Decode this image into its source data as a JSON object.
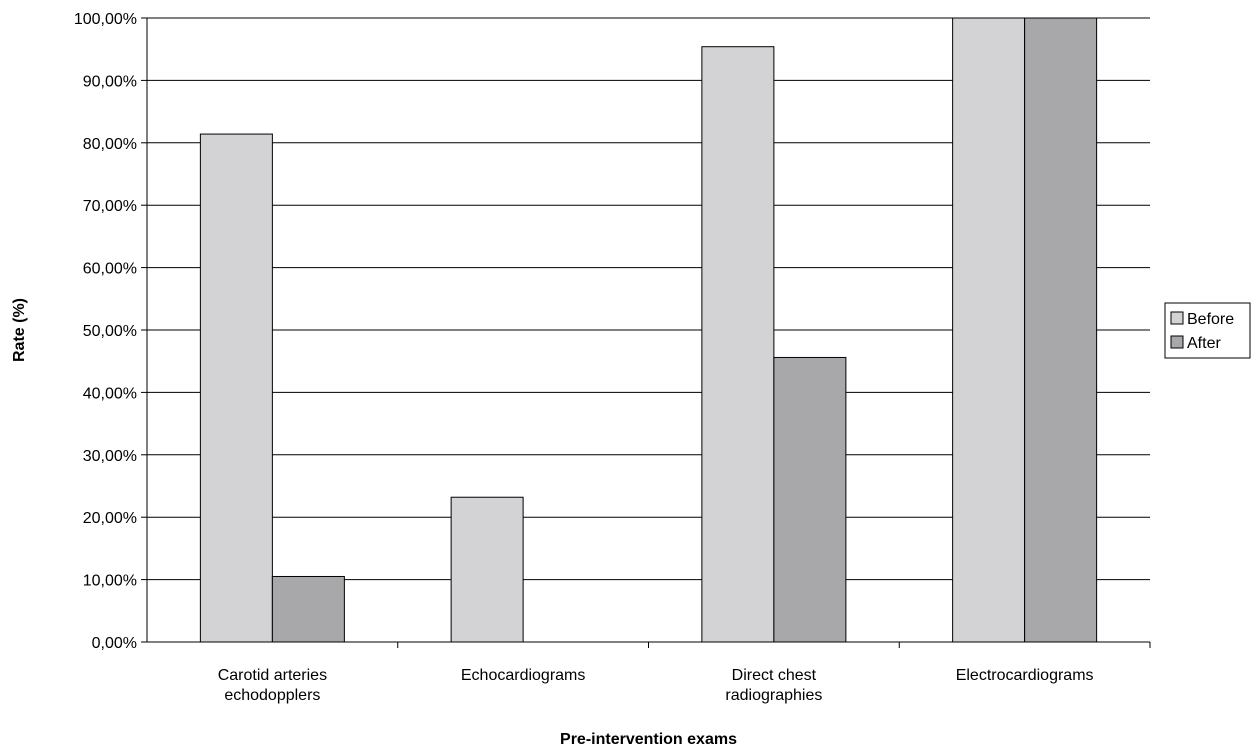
{
  "chart_data": {
    "type": "bar",
    "categories": [
      [
        "Carotid arteries",
        "echodopplers"
      ],
      [
        "Echocardiograms"
      ],
      [
        "Direct chest",
        "radiographies"
      ],
      [
        "Electrocardiograms"
      ]
    ],
    "series": [
      {
        "name": "Before",
        "values": [
          81.4,
          23.2,
          95.4,
          100.0
        ],
        "color": "#d3d3d5"
      },
      {
        "name": "After",
        "values": [
          10.5,
          0.0,
          45.6,
          100.0
        ],
        "color": "#a8a8ab"
      }
    ],
    "xlabel": "Pre-intervention exams",
    "ylabel": "Rate (%)",
    "ylim": [
      0,
      100
    ],
    "y_ticks": [
      "0,00%",
      "10,00%",
      "20,00%",
      "30,00%",
      "40,00%",
      "50,00%",
      "60,00%",
      "70,00%",
      "80,00%",
      "90,00%",
      "100,00%"
    ],
    "grid": true,
    "legend_position": "right"
  }
}
